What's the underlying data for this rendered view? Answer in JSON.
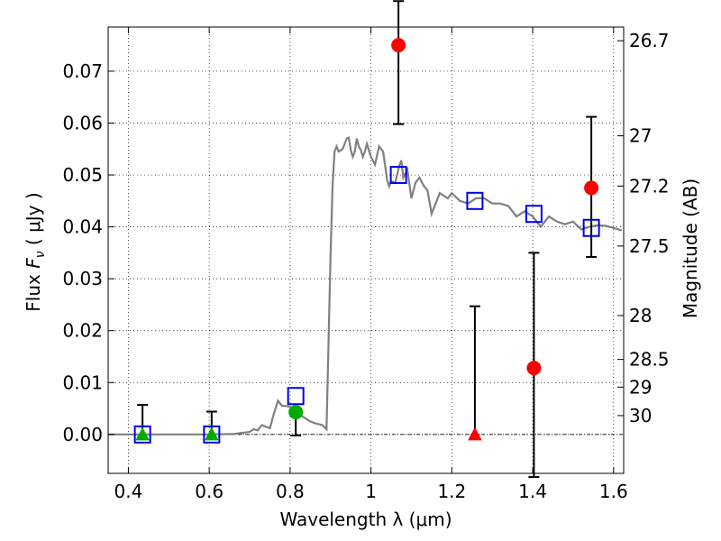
{
  "chart_data": {
    "type": "scatter",
    "xlabel": "Wavelength  λ (μm)",
    "ylabel_parts": [
      "Flux  ",
      "F",
      "ν",
      "  (  μJy  )"
    ],
    "ylabel_right": "Magnitude (AB)",
    "xlim": [
      0.35,
      1.625
    ],
    "ylim": [
      -0.0075,
      0.0785
    ],
    "grid": true,
    "x_ticks": [
      {
        "value": 0.4,
        "label": "0.4"
      },
      {
        "value": 0.6,
        "label": "0.6"
      },
      {
        "value": 0.8,
        "label": "0.8"
      },
      {
        "value": 1.0,
        "label": "1"
      },
      {
        "value": 1.2,
        "label": "1.2"
      },
      {
        "value": 1.4,
        "label": "1.4"
      },
      {
        "value": 1.6,
        "label": "1.6"
      }
    ],
    "y_ticks": [
      {
        "value": 0.0,
        "label": "0.00"
      },
      {
        "value": 0.01,
        "label": "0.01"
      },
      {
        "value": 0.02,
        "label": "0.02"
      },
      {
        "value": 0.03,
        "label": "0.03"
      },
      {
        "value": 0.04,
        "label": "0.04"
      },
      {
        "value": 0.05,
        "label": "0.05"
      },
      {
        "value": 0.06,
        "label": "0.06"
      },
      {
        "value": 0.07,
        "label": "0.07"
      }
    ],
    "mag_ticks": [
      {
        "mag": 26.7,
        "label": "26.7"
      },
      {
        "mag": 27,
        "label": "27"
      },
      {
        "mag": 27.2,
        "label": "27.2"
      },
      {
        "mag": 27.5,
        "label": "27.5"
      },
      {
        "mag": 28,
        "label": "28"
      },
      {
        "mag": 28.5,
        "label": "28.5"
      },
      {
        "mag": 29,
        "label": "29"
      },
      {
        "mag": 30,
        "label": "30"
      }
    ],
    "model_spectrum": {
      "color": "#808080",
      "x": [
        0.35,
        0.5,
        0.6,
        0.66,
        0.7,
        0.71,
        0.72,
        0.73,
        0.74,
        0.75,
        0.76,
        0.77,
        0.78,
        0.79,
        0.8,
        0.81,
        0.82,
        0.83,
        0.84,
        0.85,
        0.86,
        0.87,
        0.88,
        0.89,
        0.9,
        0.905,
        0.91,
        0.915,
        0.92,
        0.93,
        0.94,
        0.945,
        0.95,
        0.955,
        0.96,
        0.965,
        0.97,
        0.975,
        0.98,
        0.985,
        0.99,
        1.0,
        1.01,
        1.02,
        1.03,
        1.04,
        1.045,
        1.05,
        1.06,
        1.07,
        1.075,
        1.08,
        1.09,
        1.1,
        1.11,
        1.12,
        1.13,
        1.14,
        1.15,
        1.17,
        1.18,
        1.19,
        1.2,
        1.22,
        1.24,
        1.26,
        1.28,
        1.3,
        1.32,
        1.34,
        1.36,
        1.38,
        1.4,
        1.42,
        1.44,
        1.46,
        1.48,
        1.5,
        1.52,
        1.54,
        1.56,
        1.58,
        1.6,
        1.62
      ],
      "y": [
        0.0,
        0.0,
        0.0,
        0.0001,
        0.0005,
        0.001,
        0.0008,
        0.0018,
        0.0015,
        0.0012,
        0.004,
        0.0065,
        0.0055,
        0.0055,
        0.0053,
        0.0048,
        0.0048,
        0.0035,
        0.003,
        0.0025,
        0.0022,
        0.002,
        0.0018,
        0.001,
        0.034,
        0.048,
        0.0545,
        0.0555,
        0.0545,
        0.055,
        0.057,
        0.0572,
        0.0548,
        0.0535,
        0.0545,
        0.057,
        0.0555,
        0.0548,
        0.0535,
        0.0545,
        0.056,
        0.0535,
        0.052,
        0.0555,
        0.0545,
        0.049,
        0.0478,
        0.0488,
        0.0485,
        0.0518,
        0.0528,
        0.0495,
        0.051,
        0.0455,
        0.0485,
        0.0495,
        0.048,
        0.047,
        0.0425,
        0.0465,
        0.046,
        0.0455,
        0.0465,
        0.045,
        0.0445,
        0.0455,
        0.0455,
        0.0445,
        0.0445,
        0.044,
        0.042,
        0.043,
        0.042,
        0.04,
        0.042,
        0.041,
        0.0405,
        0.041,
        0.0395,
        0.04,
        0.0403,
        0.0402,
        0.0398,
        0.0393
      ]
    },
    "model_photometry": {
      "marker": "open-square",
      "color": "#0000ee",
      "points": [
        {
          "x": 0.435,
          "y": 0.0
        },
        {
          "x": 0.606,
          "y": 0.0
        },
        {
          "x": 0.814,
          "y": 0.0074
        },
        {
          "x": 1.068,
          "y": 0.05
        },
        {
          "x": 1.257,
          "y": 0.045
        },
        {
          "x": 1.403,
          "y": 0.0425
        },
        {
          "x": 1.545,
          "y": 0.0398
        }
      ]
    },
    "observed_detections": [
      {
        "x": 0.814,
        "y": 0.0043,
        "yerr_low": 0.0045,
        "yerr_high": 0.0,
        "marker": "circle",
        "color": "#00aa00"
      },
      {
        "x": 1.068,
        "y": 0.075,
        "yerr_low": 0.0152,
        "yerr_high": 0.0085,
        "marker": "circle",
        "color": "#ff0000"
      },
      {
        "x": 1.403,
        "y": 0.0128,
        "yerr_low": 0.021,
        "yerr_high": 0.0222,
        "marker": "circle",
        "color": "#ff0000"
      },
      {
        "x": 1.545,
        "y": 0.0475,
        "yerr_low": 0.0133,
        "yerr_high": 0.0137,
        "marker": "circle",
        "color": "#ff0000"
      }
    ],
    "upper_limits": [
      {
        "x": 0.435,
        "y": 0.0,
        "yerr_high": 0.0057,
        "marker": "triangle",
        "color": "#00aa00"
      },
      {
        "x": 0.606,
        "y": 0.0,
        "yerr_high": 0.0044,
        "marker": "triangle",
        "color": "#00aa00"
      },
      {
        "x": 1.257,
        "y": 0.0,
        "yerr_high": 0.0247,
        "marker": "triangle",
        "color": "#ff0000"
      }
    ]
  }
}
